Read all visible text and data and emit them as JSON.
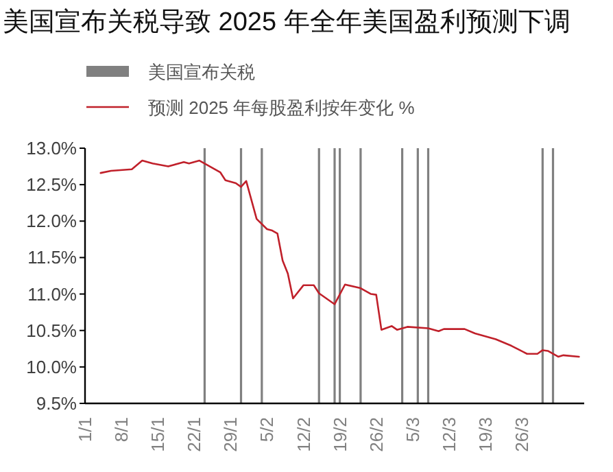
{
  "chart_data": {
    "type": "line",
    "title": "美国宣布关税导致 2025 年全年美国盈利预测下调",
    "legend": "top",
    "x": [
      "--01-04",
      "--01-06",
      "--01-10",
      "--01-12",
      "--01-14",
      "--01-17",
      "--01-20",
      "--01-21",
      "--01-23",
      "--01-26",
      "--01-27",
      "--01-28",
      "--01-30",
      "--01-31",
      "--02-01",
      "--02-03",
      "--02-05",
      "--02-06",
      "--02-07",
      "--02-08",
      "--02-09",
      "--02-10",
      "--02-12",
      "--02-14",
      "--02-15",
      "--02-18",
      "--02-20",
      "--02-23",
      "--02-25",
      "--02-26",
      "--02-27",
      "--03-01",
      "--03-02",
      "--03-04",
      "--03-08",
      "--03-10",
      "--03-11",
      "--03-15",
      "--03-17",
      "--03-21",
      "--03-24",
      "--03-27",
      "--03-29",
      "--03-30",
      "--03-31",
      "--04-02",
      "--04-03",
      "--04-06"
    ],
    "series": [
      {
        "name": "美国宣布关税",
        "type": "bar",
        "color": "#808080",
        "x": [
          "--01-24",
          "--01-31",
          "--02-04",
          "--02-15",
          "--02-18",
          "--02-19",
          "--02-23",
          "--03-03",
          "--03-06",
          "--03-08",
          "--03-30",
          "--04-01"
        ],
        "values": [
          13.0,
          13.0,
          13.0,
          13.0,
          13.0,
          13.0,
          13.0,
          13.0,
          13.0,
          13.0,
          13.0,
          13.0
        ]
      },
      {
        "name": "预测 2025 年每股盈利按年变化 %",
        "color": "#c0202a",
        "values": [
          12.66,
          12.69,
          12.71,
          12.83,
          12.79,
          12.75,
          12.81,
          12.79,
          12.83,
          12.71,
          12.67,
          12.56,
          12.52,
          12.47,
          12.55,
          12.03,
          11.89,
          11.87,
          11.83,
          11.46,
          11.28,
          10.94,
          11.12,
          11.12,
          11.01,
          10.86,
          11.13,
          11.08,
          11.0,
          10.99,
          10.51,
          10.56,
          10.51,
          10.55,
          10.53,
          10.49,
          10.52,
          10.52,
          10.46,
          10.38,
          10.29,
          10.18,
          10.18,
          10.23,
          10.22,
          10.14,
          10.16,
          10.14
        ]
      }
    ],
    "xlim": [
      "--01-01",
      "--04-07"
    ],
    "xticks": [
      {
        "value": "--01-01",
        "label": "1/1"
      },
      {
        "value": "--01-08",
        "label": "8/1"
      },
      {
        "value": "--01-15",
        "label": "15/1"
      },
      {
        "value": "--01-22",
        "label": "22/1"
      },
      {
        "value": "--01-29",
        "label": "29/1"
      },
      {
        "value": "--02-05",
        "label": "5/2"
      },
      {
        "value": "--02-12",
        "label": "12/2"
      },
      {
        "value": "--02-19",
        "label": "19/2"
      },
      {
        "value": "--02-26",
        "label": "26/2"
      },
      {
        "value": "--03-05",
        "label": "5/3"
      },
      {
        "value": "--03-12",
        "label": "12/3"
      },
      {
        "value": "--03-19",
        "label": "19/3"
      },
      {
        "value": "--03-26",
        "label": "26/3"
      }
    ],
    "ylim": [
      9.5,
      13.0
    ],
    "yticks": [
      {
        "value": 9.5,
        "label": "9.5%"
      },
      {
        "value": 10.0,
        "label": "10.0%"
      },
      {
        "value": 10.5,
        "label": "10.5%"
      },
      {
        "value": 11.0,
        "label": "11.0%"
      },
      {
        "value": 11.5,
        "label": "11.5%"
      },
      {
        "value": 12.0,
        "label": "12.0%"
      },
      {
        "value": 12.5,
        "label": "12.5%"
      },
      {
        "value": 13.0,
        "label": "13.0%"
      }
    ]
  }
}
